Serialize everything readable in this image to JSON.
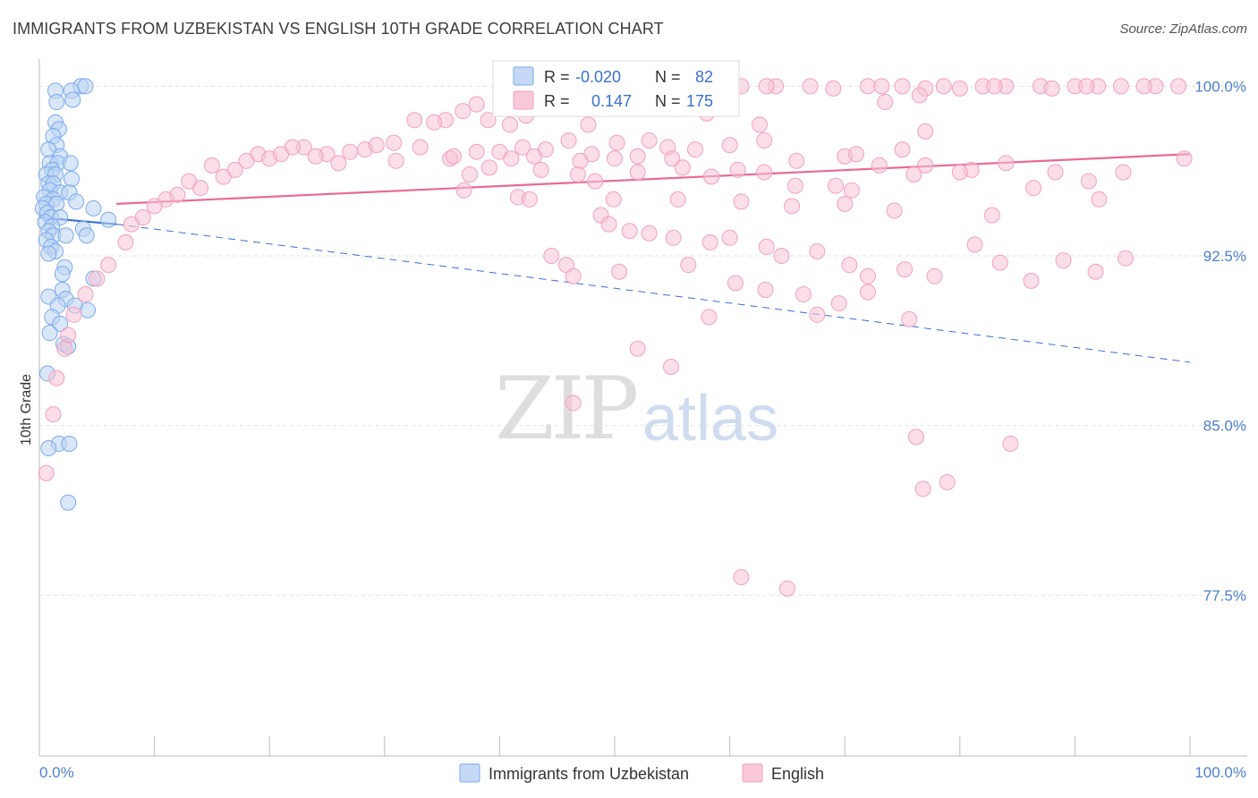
{
  "header": {
    "title": "IMMIGRANTS FROM UZBEKISTAN VS ENGLISH 10TH GRADE CORRELATION CHART",
    "source": "Source: ZipAtlas.com"
  },
  "watermark": {
    "zip": "ZIP",
    "atlas": "atlas"
  },
  "stats": {
    "r_label": "R =",
    "n_label": "N =",
    "rows": [
      {
        "r": "-0.020",
        "n": "82",
        "color": "#7aaaf0"
      },
      {
        "r": "0.147",
        "n": "175",
        "color": "#f4a0bc"
      }
    ]
  },
  "chart_data": {
    "type": "scatter",
    "title": "IMMIGRANTS FROM UZBEKISTAN VS ENGLISH 10TH GRADE CORRELATION CHART",
    "xlabel": "",
    "ylabel": "10th Grade",
    "xlim": [
      0,
      100
    ],
    "ylim": [
      70.4,
      101.2
    ],
    "x_tick_labels": [
      "0.0%",
      "100.0%"
    ],
    "y_ticks": [
      77.5,
      85.0,
      92.5,
      100.0
    ],
    "y_tick_labels": [
      "77.5%",
      "85.0%",
      "92.5%",
      "100.0%"
    ],
    "grid": true,
    "legend_position": "bottom",
    "series": [
      {
        "name": "Immigrants from Uzbekistan",
        "color": "#7aaaf0",
        "trend": {
          "x": [
            0,
            6.7
          ],
          "y": [
            94.2,
            93.9
          ],
          "dashed_to": [
            100,
            87.8
          ]
        },
        "points": [
          [
            3.6,
            100
          ],
          [
            4,
            100
          ],
          [
            1.4,
            99.8
          ],
          [
            2.8,
            99.8
          ],
          [
            1.5,
            99.3
          ],
          [
            2.9,
            99.4
          ],
          [
            1.4,
            98.4
          ],
          [
            1.7,
            98.1
          ],
          [
            1.2,
            97.8
          ],
          [
            1.5,
            97.4
          ],
          [
            0.8,
            97.2
          ],
          [
            1.8,
            96.9
          ],
          [
            0.9,
            96.6
          ],
          [
            1.6,
            96.6
          ],
          [
            2.7,
            96.6
          ],
          [
            1.1,
            96.3
          ],
          [
            0.6,
            96.1
          ],
          [
            1.4,
            96.1
          ],
          [
            2.8,
            95.9
          ],
          [
            0.8,
            95.7
          ],
          [
            1.2,
            95.7
          ],
          [
            0.9,
            95.4
          ],
          [
            1.8,
            95.3
          ],
          [
            2.6,
            95.3
          ],
          [
            0.4,
            95.1
          ],
          [
            1.2,
            95
          ],
          [
            3.2,
            94.9
          ],
          [
            0.6,
            94.8
          ],
          [
            1.5,
            94.8
          ],
          [
            0.3,
            94.6
          ],
          [
            4.7,
            94.6
          ],
          [
            0.7,
            94.4
          ],
          [
            1,
            94.2
          ],
          [
            1.8,
            94.2
          ],
          [
            6,
            94.1
          ],
          [
            0.5,
            94
          ],
          [
            1.1,
            93.8
          ],
          [
            0.8,
            93.6
          ],
          [
            3.8,
            93.7
          ],
          [
            1.2,
            93.4
          ],
          [
            2.3,
            93.4
          ],
          [
            4.1,
            93.4
          ],
          [
            0.6,
            93.2
          ],
          [
            1,
            92.9
          ],
          [
            1.4,
            92.7
          ],
          [
            0.8,
            92.6
          ],
          [
            2.2,
            92
          ],
          [
            2,
            91.7
          ],
          [
            4.7,
            91.5
          ],
          [
            2,
            91
          ],
          [
            0.8,
            90.7
          ],
          [
            2.3,
            90.6
          ],
          [
            1.6,
            90.3
          ],
          [
            3.1,
            90.3
          ],
          [
            4.2,
            90.1
          ],
          [
            1.1,
            89.8
          ],
          [
            1.8,
            89.5
          ],
          [
            0.9,
            89.1
          ],
          [
            2.1,
            88.6
          ],
          [
            2.5,
            88.5
          ],
          [
            0.7,
            87.3
          ],
          [
            1.7,
            84.2
          ],
          [
            2.6,
            84.2
          ],
          [
            0.8,
            84
          ],
          [
            2.5,
            81.6
          ]
        ]
      },
      {
        "name": "English",
        "color": "#f4a0bc",
        "trend": {
          "x": [
            6.7,
            100
          ],
          "y": [
            94.8,
            97
          ]
        },
        "points": [
          [
            47,
            99.9
          ],
          [
            51,
            100
          ],
          [
            53,
            99.6
          ],
          [
            61,
            100
          ],
          [
            64,
            100
          ],
          [
            67,
            100
          ],
          [
            69,
            99.9
          ],
          [
            72,
            100
          ],
          [
            75,
            100
          ],
          [
            77,
            99.9
          ],
          [
            82,
            100
          ],
          [
            84,
            100
          ],
          [
            87,
            100
          ],
          [
            88,
            99.9
          ],
          [
            90,
            100
          ],
          [
            92,
            100
          ],
          [
            94,
            100
          ],
          [
            97,
            100
          ],
          [
            99,
            100
          ],
          [
            56.7,
            99.8
          ],
          [
            45,
            99.5
          ],
          [
            63.2,
            100
          ],
          [
            73.2,
            100
          ],
          [
            78.6,
            100
          ],
          [
            80,
            99.9
          ],
          [
            83,
            100
          ],
          [
            91,
            100
          ],
          [
            96,
            100
          ],
          [
            73.5,
            99.3
          ],
          [
            76.5,
            99.6
          ],
          [
            38,
            99.2
          ],
          [
            44,
            99.1
          ],
          [
            48,
            99.2
          ],
          [
            55,
            99
          ],
          [
            32.6,
            98.5
          ],
          [
            35.3,
            98.5
          ],
          [
            36.8,
            98.9
          ],
          [
            40.9,
            98.3
          ],
          [
            42.3,
            98.7
          ],
          [
            34.3,
            98.4
          ],
          [
            39,
            98.5
          ],
          [
            47.7,
            98.3
          ],
          [
            58,
            98.8
          ],
          [
            62.6,
            98.3
          ],
          [
            77,
            98
          ],
          [
            23,
            97.3
          ],
          [
            22,
            97.3
          ],
          [
            19,
            97
          ],
          [
            25,
            97
          ],
          [
            27,
            97.1
          ],
          [
            28.3,
            97.2
          ],
          [
            29.3,
            97.4
          ],
          [
            30.8,
            97.5
          ],
          [
            33.1,
            97.3
          ],
          [
            35.7,
            96.8
          ],
          [
            38,
            97.1
          ],
          [
            40,
            97.1
          ],
          [
            42,
            97.3
          ],
          [
            44,
            97.2
          ],
          [
            46,
            97.6
          ],
          [
            48,
            97
          ],
          [
            50.2,
            97.5
          ],
          [
            53,
            97.6
          ],
          [
            54.6,
            97.3
          ],
          [
            57,
            97.2
          ],
          [
            60,
            97.4
          ],
          [
            63,
            97.6
          ],
          [
            18,
            96.7
          ],
          [
            20,
            96.8
          ],
          [
            21,
            97
          ],
          [
            24,
            96.9
          ],
          [
            26,
            96.6
          ],
          [
            31,
            96.7
          ],
          [
            36,
            96.9
          ],
          [
            41,
            96.8
          ],
          [
            43,
            96.9
          ],
          [
            47,
            96.7
          ],
          [
            50,
            96.8
          ],
          [
            52,
            96.9
          ],
          [
            55,
            96.8
          ],
          [
            65.8,
            96.7
          ],
          [
            70,
            96.9
          ],
          [
            71,
            97
          ],
          [
            75,
            97.2
          ],
          [
            77,
            96.5
          ],
          [
            81,
            96.3
          ],
          [
            88.3,
            96.2
          ],
          [
            99.5,
            96.8
          ],
          [
            15,
            96.5
          ],
          [
            16,
            96
          ],
          [
            17,
            96.3
          ],
          [
            14,
            95.5
          ],
          [
            13,
            95.8
          ],
          [
            12,
            95.2
          ],
          [
            11,
            95
          ],
          [
            10,
            94.7
          ],
          [
            9,
            94.2
          ],
          [
            8,
            93.9
          ],
          [
            7.5,
            93.1
          ],
          [
            6,
            92.1
          ],
          [
            5,
            91.5
          ],
          [
            4,
            90.8
          ],
          [
            3,
            89.9
          ],
          [
            2.5,
            89
          ],
          [
            2.2,
            88.4
          ],
          [
            1.5,
            87.1
          ],
          [
            1.2,
            85.5
          ],
          [
            0.6,
            82.9
          ],
          [
            37.4,
            96.1
          ],
          [
            39.1,
            96.4
          ],
          [
            43.6,
            96.3
          ],
          [
            46.8,
            96.1
          ],
          [
            48.3,
            95.8
          ],
          [
            52,
            96.2
          ],
          [
            55.9,
            96.4
          ],
          [
            58.4,
            96
          ],
          [
            60.7,
            96.3
          ],
          [
            63,
            96.2
          ],
          [
            65.7,
            95.6
          ],
          [
            69.2,
            95.6
          ],
          [
            70.6,
            95.4
          ],
          [
            73,
            96.5
          ],
          [
            76,
            96.1
          ],
          [
            80,
            96.2
          ],
          [
            84,
            96.6
          ],
          [
            86.4,
            95.5
          ],
          [
            91.2,
            95.8
          ],
          [
            94.2,
            96.2
          ],
          [
            36.9,
            95.4
          ],
          [
            41.6,
            95.1
          ],
          [
            42.6,
            95
          ],
          [
            49.9,
            95
          ],
          [
            55.5,
            95
          ],
          [
            61,
            94.9
          ],
          [
            65.4,
            94.7
          ],
          [
            70,
            94.8
          ],
          [
            74.3,
            94.5
          ],
          [
            82.8,
            94.3
          ],
          [
            92.1,
            95
          ],
          [
            48.8,
            94.3
          ],
          [
            49.5,
            93.9
          ],
          [
            51.3,
            93.6
          ],
          [
            53,
            93.5
          ],
          [
            55.1,
            93.3
          ],
          [
            58.3,
            93.1
          ],
          [
            60,
            93.3
          ],
          [
            63.2,
            92.9
          ],
          [
            64.5,
            92.5
          ],
          [
            67.6,
            92.7
          ],
          [
            70.4,
            92.1
          ],
          [
            72,
            91.6
          ],
          [
            75.2,
            91.9
          ],
          [
            83.5,
            92.2
          ],
          [
            86.2,
            91.4
          ],
          [
            89,
            92.3
          ],
          [
            91.8,
            91.8
          ],
          [
            94.4,
            92.4
          ],
          [
            44.5,
            92.5
          ],
          [
            45.8,
            92.1
          ],
          [
            46.4,
            91.6
          ],
          [
            50.4,
            91.8
          ],
          [
            56.4,
            92.1
          ],
          [
            60.5,
            91.3
          ],
          [
            63.1,
            91
          ],
          [
            66.4,
            90.8
          ],
          [
            69.5,
            90.4
          ],
          [
            72,
            90.9
          ],
          [
            77.8,
            91.6
          ],
          [
            81.3,
            93
          ],
          [
            75.6,
            89.7
          ],
          [
            67.6,
            89.9
          ],
          [
            58.2,
            89.8
          ],
          [
            52,
            88.4
          ],
          [
            54.9,
            87.6
          ],
          [
            46.4,
            86
          ],
          [
            76.2,
            84.5
          ],
          [
            84.4,
            84.2
          ],
          [
            78.9,
            82.5
          ],
          [
            76.8,
            82.2
          ],
          [
            65,
            77.8
          ],
          [
            61,
            78.3
          ]
        ]
      }
    ]
  },
  "legend": {
    "items": [
      {
        "label": "Immigrants from Uzbekistan",
        "color": "#7aaaf0"
      },
      {
        "label": "English",
        "color": "#f4a0bc"
      }
    ]
  }
}
